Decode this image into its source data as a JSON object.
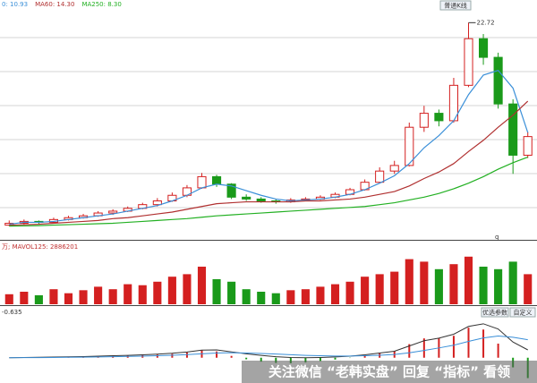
{
  "chart_data": {
    "type": "candlestick",
    "up_color": "#d42020",
    "down_color": "#1a9a1a",
    "top_button": "普通K线",
    "high_label_index": 31,
    "side_label": "q",
    "ylim": [
      0,
      24
    ],
    "ohlc": [
      [
        1.0,
        1.5,
        0.9,
        1.2
      ],
      [
        1.2,
        1.6,
        1.1,
        1.4
      ],
      [
        1.4,
        1.5,
        1.1,
        1.3
      ],
      [
        1.3,
        1.8,
        1.2,
        1.6
      ],
      [
        1.6,
        2.0,
        1.5,
        1.8
      ],
      [
        1.8,
        2.2,
        1.7,
        2.0
      ],
      [
        2.0,
        2.5,
        1.9,
        2.3
      ],
      [
        2.3,
        2.7,
        2.1,
        2.5
      ],
      [
        2.5,
        3.0,
        2.4,
        2.8
      ],
      [
        2.8,
        3.4,
        2.7,
        3.2
      ],
      [
        3.2,
        3.9,
        3.0,
        3.6
      ],
      [
        3.6,
        4.5,
        3.5,
        4.2
      ],
      [
        4.2,
        5.3,
        4.0,
        5.0
      ],
      [
        5.0,
        6.6,
        4.9,
        6.2
      ],
      [
        6.2,
        6.4,
        5.1,
        5.4
      ],
      [
        5.4,
        5.5,
        3.8,
        4.0
      ],
      [
        4.0,
        4.3,
        3.6,
        3.8
      ],
      [
        3.8,
        4.0,
        3.4,
        3.6
      ],
      [
        3.6,
        3.8,
        3.3,
        3.5
      ],
      [
        3.5,
        3.9,
        3.4,
        3.7
      ],
      [
        3.7,
        4.0,
        3.6,
        3.8
      ],
      [
        3.8,
        4.2,
        3.7,
        4.0
      ],
      [
        4.0,
        4.5,
        3.9,
        4.3
      ],
      [
        4.3,
        5.0,
        4.2,
        4.8
      ],
      [
        4.8,
        5.9,
        4.7,
        5.6
      ],
      [
        5.6,
        7.2,
        5.5,
        6.8
      ],
      [
        6.8,
        7.9,
        6.5,
        7.4
      ],
      [
        7.4,
        12.0,
        7.3,
        11.5
      ],
      [
        11.5,
        13.8,
        11.0,
        13.0
      ],
      [
        13.0,
        13.4,
        11.6,
        12.2
      ],
      [
        12.2,
        16.8,
        12.0,
        16.0
      ],
      [
        16.0,
        22.72,
        15.8,
        21.0
      ],
      [
        21.0,
        21.5,
        18.2,
        19.0
      ],
      [
        19.0,
        19.5,
        13.5,
        14.0
      ],
      [
        14.0,
        14.5,
        6.5,
        8.5
      ],
      [
        8.5,
        11.0,
        8.2,
        10.5
      ]
    ],
    "series": [
      {
        "name": "0: 10.93",
        "color": "#3a8fd8",
        "values": [
          1.1,
          1.3,
          1.3,
          1.4,
          1.6,
          1.8,
          2.0,
          2.2,
          2.5,
          2.8,
          3.1,
          3.6,
          4.2,
          5.0,
          5.4,
          5.2,
          4.7,
          4.2,
          3.8,
          3.6,
          3.7,
          3.8,
          4.0,
          4.3,
          4.8,
          5.5,
          6.3,
          7.6,
          9.3,
          10.6,
          12.2,
          15.0,
          17.1,
          17.6,
          15.7,
          10.93
        ]
      },
      {
        "name": "MA60: 14.30",
        "color": "#b03030",
        "values": [
          1.0,
          1.05,
          1.1,
          1.2,
          1.3,
          1.4,
          1.5,
          1.7,
          1.8,
          2.0,
          2.2,
          2.4,
          2.7,
          3.0,
          3.3,
          3.4,
          3.5,
          3.5,
          3.5,
          3.5,
          3.6,
          3.6,
          3.7,
          3.8,
          4.0,
          4.3,
          4.6,
          5.2,
          6.0,
          6.7,
          7.6,
          8.9,
          10.1,
          11.5,
          12.8,
          14.3
        ]
      },
      {
        "name": "MA250: 8.30",
        "color": "#22b022",
        "values": [
          0.9,
          0.92,
          0.95,
          1.0,
          1.05,
          1.1,
          1.15,
          1.2,
          1.3,
          1.4,
          1.5,
          1.6,
          1.7,
          1.85,
          2.0,
          2.1,
          2.2,
          2.3,
          2.4,
          2.5,
          2.6,
          2.7,
          2.8,
          2.9,
          3.0,
          3.2,
          3.4,
          3.7,
          4.0,
          4.4,
          4.9,
          5.5,
          6.2,
          7.0,
          7.7,
          8.3
        ]
      }
    ],
    "volume": {
      "title": "万; MAVOL125: 2886201",
      "ylim": [
        0,
        100
      ],
      "values": [
        20,
        25,
        18,
        30,
        22,
        28,
        35,
        30,
        40,
        38,
        45,
        55,
        60,
        75,
        50,
        45,
        30,
        25,
        22,
        28,
        30,
        35,
        40,
        45,
        55,
        60,
        65,
        90,
        85,
        70,
        80,
        95,
        75,
        70,
        85,
        60
      ]
    },
    "macd": {
      "title": "-0.635",
      "buttons": [
        "优选参数",
        "自定义"
      ],
      "ylim": [
        -1.8,
        3
      ],
      "dif": {
        "color": "#333333",
        "values": [
          0,
          0.02,
          0.03,
          0.05,
          0.07,
          0.09,
          0.12,
          0.15,
          0.18,
          0.22,
          0.27,
          0.34,
          0.44,
          0.58,
          0.6,
          0.45,
          0.3,
          0.18,
          0.08,
          0.02,
          0.0,
          0.02,
          0.06,
          0.12,
          0.22,
          0.36,
          0.5,
          0.9,
          1.3,
          1.5,
          1.8,
          2.4,
          2.6,
          2.2,
          1.2,
          0.6
        ]
      },
      "dea": {
        "color": "#3a8fd8",
        "values": [
          0,
          0.01,
          0.01,
          0.02,
          0.03,
          0.04,
          0.06,
          0.08,
          0.1,
          0.12,
          0.15,
          0.19,
          0.24,
          0.3,
          0.36,
          0.38,
          0.36,
          0.33,
          0.28,
          0.23,
          0.18,
          0.15,
          0.13,
          0.13,
          0.15,
          0.19,
          0.25,
          0.38,
          0.56,
          0.75,
          0.96,
          1.25,
          1.52,
          1.66,
          1.57,
          1.38
        ]
      },
      "hist": [
        0,
        0.02,
        0.04,
        0.06,
        0.08,
        0.1,
        0.12,
        0.14,
        0.16,
        0.2,
        0.24,
        0.3,
        0.4,
        0.56,
        0.48,
        0.14,
        -0.12,
        -0.3,
        -0.4,
        -0.42,
        -0.36,
        -0.26,
        -0.14,
        -0.02,
        0.14,
        0.34,
        0.5,
        1.04,
        1.48,
        1.5,
        1.68,
        2.3,
        2.16,
        1.08,
        -0.74,
        -1.56
      ]
    },
    "watermark": "关注微信 “老韩实盘” 回复 “指标” 看领"
  }
}
